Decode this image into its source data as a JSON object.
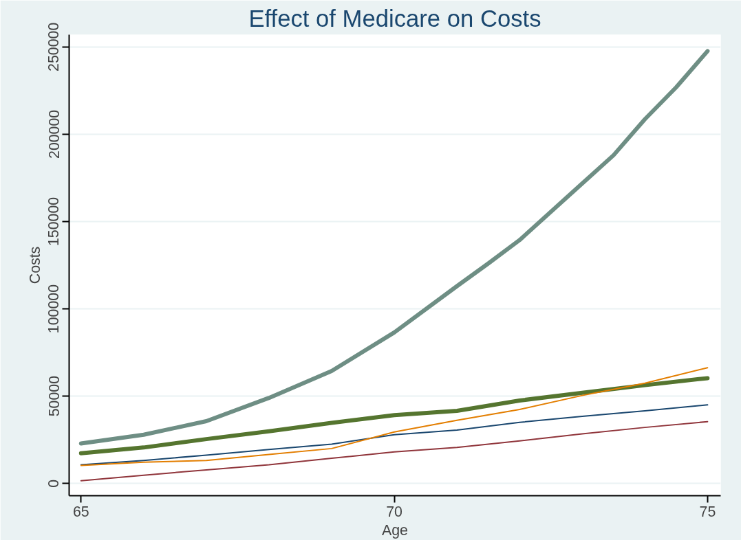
{
  "chart_data": {
    "type": "line",
    "title": "Effect of Medicare on Costs",
    "xlabel": "Age",
    "ylabel": "Costs",
    "xlim": [
      64.81,
      75.21
    ],
    "ylim": [
      -7000,
      257000
    ],
    "xticks": [
      65,
      70,
      75
    ],
    "yticks": [
      0,
      50000,
      100000,
      150000,
      200000,
      250000
    ],
    "grid": "y",
    "line_style": "solid",
    "marker": "none",
    "x": [
      65,
      66,
      67,
      68,
      69,
      70,
      71,
      72,
      73,
      74,
      75
    ],
    "series": [
      {
        "color": "#6e8e84",
        "x": [
          65,
          66,
          67,
          68,
          69,
          70,
          71,
          71.5,
          72,
          73,
          73.5,
          74,
          74.5,
          75
        ],
        "values": [
          22900,
          27900,
          35700,
          49000,
          64400,
          86500,
          113000,
          126000,
          139400,
          171800,
          188000,
          208600,
          226900,
          247600
        ]
      },
      {
        "color": "#55752f",
        "values": [
          17300,
          20600,
          25400,
          29900,
          34700,
          39100,
          41600,
          47500,
          51900,
          56300,
          60300
        ]
      },
      {
        "color": "#1a476f",
        "values": [
          10700,
          13200,
          16200,
          19500,
          22500,
          27900,
          30600,
          35000,
          38400,
          41600,
          45000
        ]
      },
      {
        "color": "#e37e00",
        "values": [
          10300,
          12200,
          13200,
          16600,
          20000,
          29500,
          36200,
          42400,
          50400,
          57400,
          66300
        ]
      },
      {
        "color": "#90353b",
        "values": [
          1600,
          4700,
          7800,
          10700,
          14400,
          18100,
          20600,
          24400,
          28400,
          32100,
          35400
        ]
      }
    ]
  }
}
